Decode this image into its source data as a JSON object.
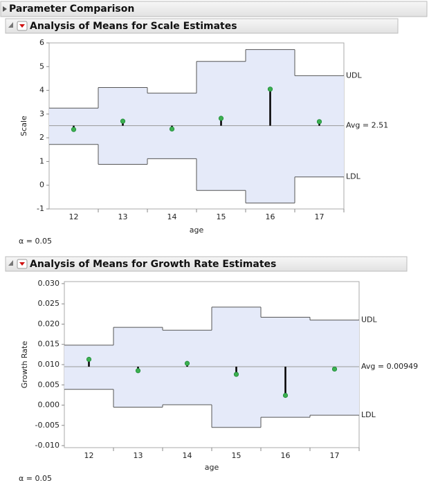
{
  "header": {
    "title": "Parameter Comparison"
  },
  "chart_data": [
    {
      "type": "anom",
      "title": "Analysis of Means for Scale Estimates",
      "x_label": "age",
      "y_label": "Scale",
      "categories": [
        "12",
        "13",
        "14",
        "15",
        "16",
        "17"
      ],
      "values": [
        2.35,
        2.7,
        2.37,
        2.82,
        4.05,
        2.68
      ],
      "udl": [
        3.25,
        4.12,
        3.88,
        5.22,
        5.72,
        4.62
      ],
      "ldl": [
        1.72,
        0.88,
        1.12,
        -0.22,
        -0.75,
        0.35
      ],
      "avg": {
        "value": 2.51,
        "label": "Avg = 2.51"
      },
      "udl_label": "UDL",
      "ldl_label": "LDL",
      "note": "α = 0.05",
      "ylim": [
        -1,
        6
      ],
      "yticks": [
        -1,
        0,
        1,
        2,
        3,
        4,
        5,
        6
      ],
      "band_color": "#e5eaf9",
      "point_color": "#3cb050"
    },
    {
      "type": "anom",
      "title": "Analysis of Means for Growth Rate Estimates",
      "x_label": "age",
      "y_label": "Growth Rate",
      "categories": [
        "12",
        "13",
        "14",
        "15",
        "16",
        "17"
      ],
      "values": [
        0.0113,
        0.0085,
        0.0103,
        0.0076,
        0.0024,
        0.0089
      ],
      "udl": [
        0.0148,
        0.0192,
        0.0185,
        0.0242,
        0.0217,
        0.021
      ],
      "ldl": [
        0.0039,
        -0.0005,
        0.0001,
        -0.0055,
        -0.003,
        -0.0025
      ],
      "avg": {
        "value": 0.00949,
        "label": "Avg = 0.00949"
      },
      "udl_label": "UDL",
      "ldl_label": "LDL",
      "note": "α = 0.05",
      "ylim": [
        -0.0105,
        0.0305
      ],
      "yticks": [
        {
          "value": -0.01,
          "label": "-0.010"
        },
        -0.005,
        {
          "value": 0,
          "label": "0.000"
        },
        0.005,
        {
          "value": 0.01,
          "label": "0.010"
        },
        0.015,
        {
          "value": 0.02,
          "label": "0.020"
        },
        0.025,
        {
          "value": 0.03,
          "label": "0.030"
        }
      ],
      "band_color": "#e5eaf9",
      "point_color": "#3cb050"
    }
  ]
}
